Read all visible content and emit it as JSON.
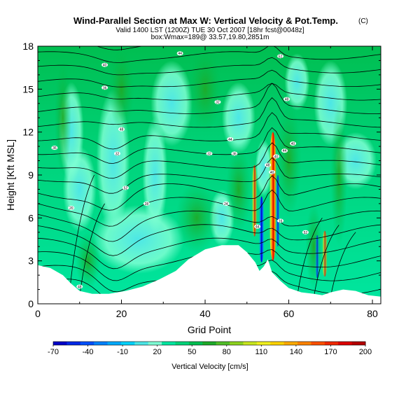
{
  "chart_data": {
    "type": "heatmap",
    "title": "Wind-Parallel Section at Max W: Vertical Velocity & Pot.Temp.",
    "title_mark": "(C)",
    "subtitle_1": "Valid 1400 LST (1200Z) TUE 30 Oct 2007 [18hr fcst@0048z]",
    "subtitle_2": "box:Wmax=189@ 33.57,19.80,2851m",
    "xlabel": "Grid Point",
    "ylabel": "Height [Kft MSL]",
    "xlim": [
      0,
      82
    ],
    "ylim": [
      0,
      18
    ],
    "x_ticks": [
      "0",
      "20",
      "40",
      "60",
      "80"
    ],
    "y_ticks": [
      "0",
      "3",
      "6",
      "9",
      "12",
      "15",
      "18"
    ],
    "colorbar": {
      "label": "Vertical Velocity [cm/s]",
      "tick_labels": [
        "-70",
        "-40",
        "-10",
        "20",
        "50",
        "80",
        "110",
        "140",
        "170",
        "200"
      ],
      "colors": [
        "#0000c8",
        "#0028e6",
        "#0050ff",
        "#0082ff",
        "#00aaff",
        "#00d2ff",
        "#4ce6e6",
        "#7fffd4",
        "#00e6a0",
        "#00d278",
        "#00be50",
        "#1eaa28",
        "#50be28",
        "#8cd21e",
        "#c8e61e",
        "#f0f01e",
        "#ffd200",
        "#ffaa00",
        "#ff8200",
        "#ff5000",
        "#f02800",
        "#dc0000",
        "#b40000"
      ],
      "range": [
        -70,
        200
      ]
    },
    "terrain_profile": {
      "x": [
        0,
        3,
        6,
        8,
        10,
        13,
        17,
        21,
        25,
        29,
        33,
        36,
        40,
        44,
        48,
        50,
        52,
        53,
        54,
        55,
        56,
        58,
        60,
        63,
        66,
        68,
        70,
        73,
        76,
        79,
        82
      ],
      "height": [
        2.7,
        2.5,
        2.0,
        1.4,
        0.9,
        0.7,
        0.7,
        0.9,
        1.2,
        1.7,
        2.3,
        3.1,
        3.8,
        4.1,
        4.1,
        3.6,
        2.9,
        2.3,
        2.6,
        3.1,
        2.2,
        1.6,
        1.1,
        0.8,
        0.7,
        0.6,
        0.8,
        1.0,
        0.9,
        0.6,
        0.5
      ]
    },
    "contour_labels": [
      "44",
      "52",
      "40",
      "48",
      "36",
      "32",
      "48",
      "44",
      "40",
      "36",
      "32",
      "32",
      "36",
      "40",
      "44",
      "48",
      "52",
      "28",
      "24",
      "20",
      "16",
      "44",
      "52",
      "48",
      "40"
    ]
  }
}
